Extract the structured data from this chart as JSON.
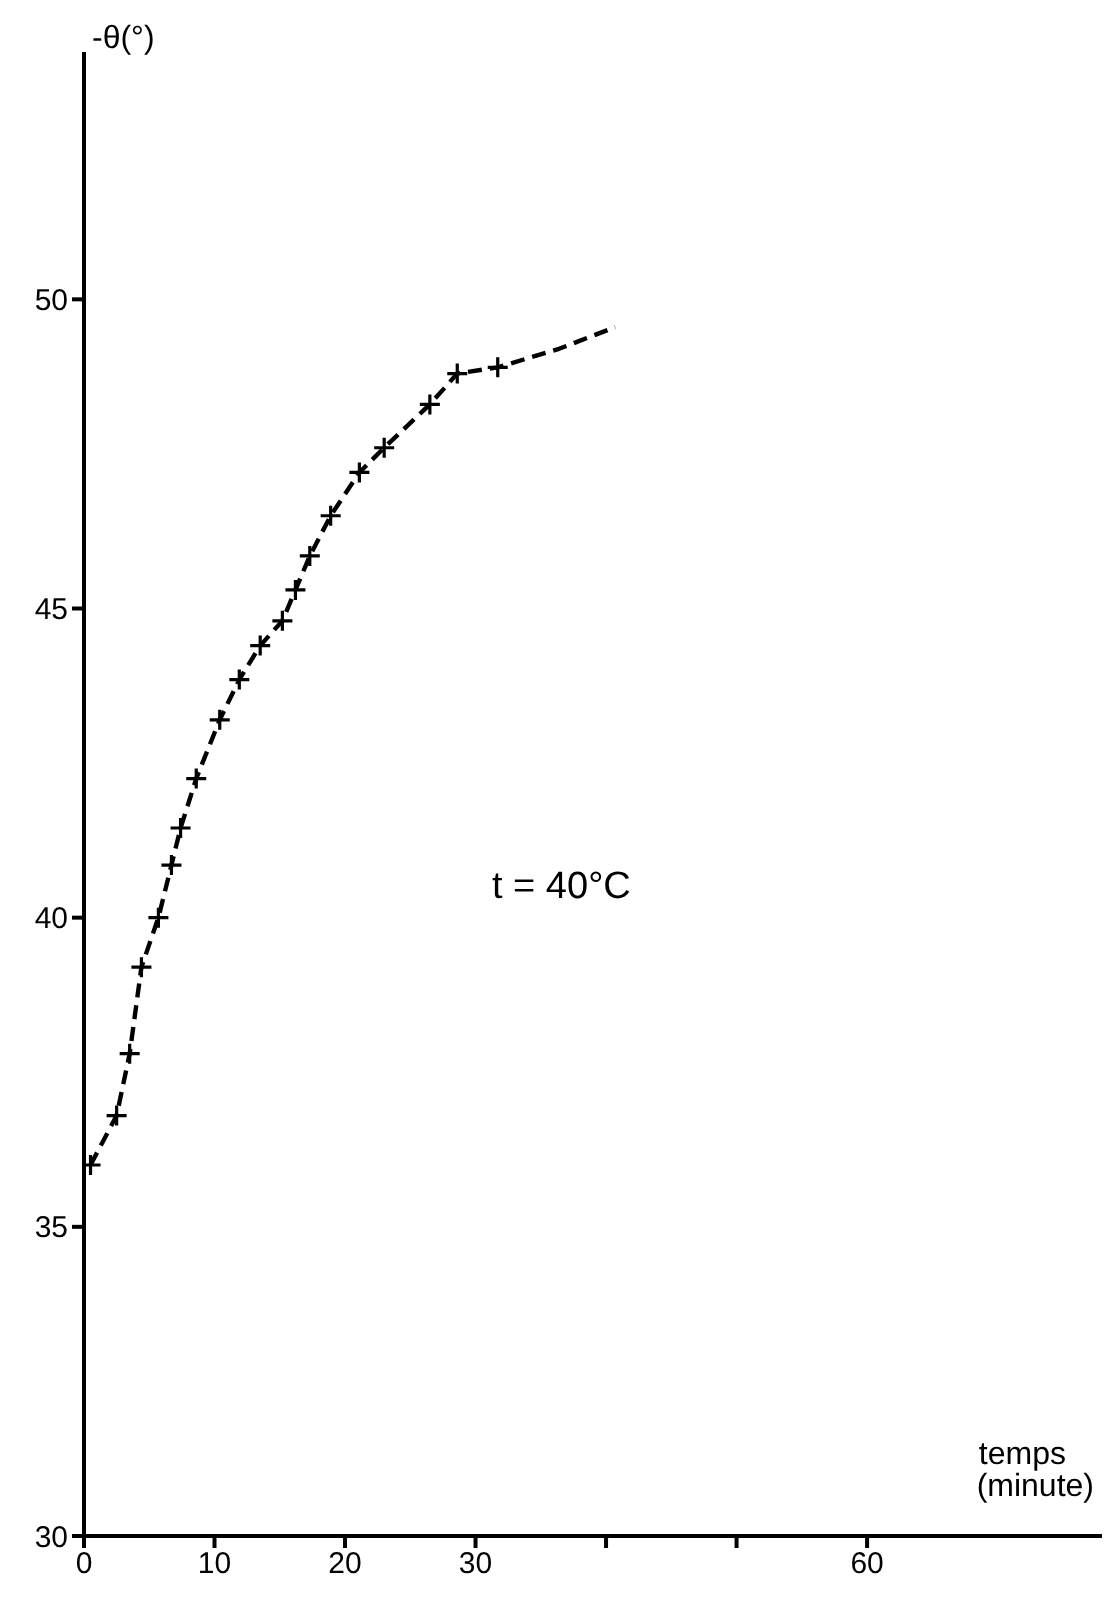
{
  "chart_data": {
    "type": "scatter",
    "xlabel": "temps (minute)",
    "ylabel": "-θ(°)",
    "annotations": [
      "t = 40°C"
    ],
    "xlim": [
      0,
      78
    ],
    "ylim": [
      30,
      54
    ],
    "xticks": [
      0,
      10,
      20,
      30,
      {
        "value": 40,
        "label": null
      },
      {
        "value": 50,
        "label": null
      },
      60
    ],
    "yticks": [
      30,
      35,
      40,
      45,
      50
    ],
    "grid": false,
    "legend": false,
    "series": [
      {
        "color": "#000000",
        "marker": "cross",
        "x": [
          0.5,
          2.5,
          3.5,
          4.4,
          5.7,
          6.7,
          7.4,
          8.6,
          10.4,
          11.9,
          13.5,
          15.2,
          16.2,
          17.3,
          18.9,
          21.1,
          23.0,
          26.5,
          28.6,
          31.7
        ],
        "values": [
          36.0,
          36.8,
          37.8,
          39.2,
          40.0,
          40.85,
          41.45,
          42.25,
          43.2,
          43.85,
          44.4,
          44.8,
          45.3,
          45.85,
          46.5,
          47.2,
          47.6,
          48.3,
          48.8,
          48.9
        ]
      },
      {
        "type": "line",
        "color": "#000000",
        "marker": "none",
        "line_style": "dashed",
        "x": [
          0.5,
          2.5,
          3.5,
          4.4,
          5.7,
          6.7,
          7.4,
          8.6,
          10.4,
          11.9,
          13.5,
          15.2,
          16.2,
          17.3,
          18.9,
          21.1,
          23.0,
          26.5,
          28.6,
          31.7,
          36.4,
          40.7
        ],
        "values": [
          36.0,
          36.8,
          37.8,
          39.2,
          40.0,
          40.85,
          41.45,
          42.25,
          43.2,
          43.85,
          44.4,
          44.8,
          45.3,
          45.85,
          46.5,
          47.2,
          47.6,
          48.3,
          48.8,
          48.9,
          49.2,
          49.55
        ]
      }
    ]
  }
}
